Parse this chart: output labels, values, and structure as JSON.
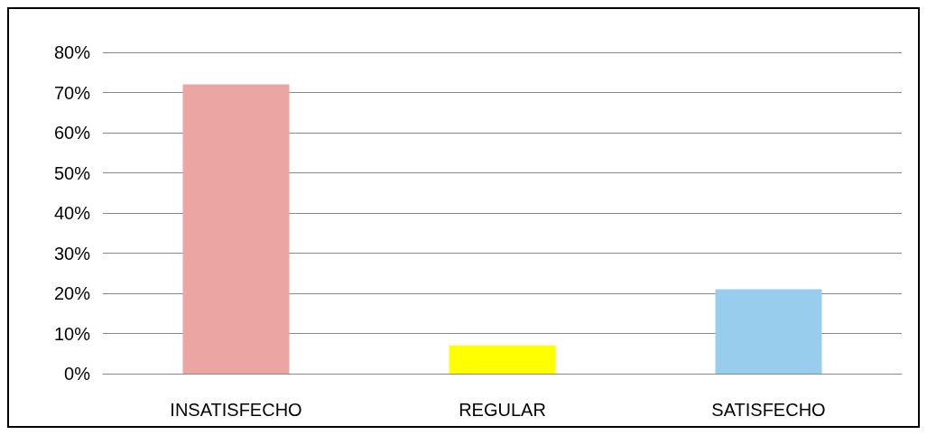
{
  "chart_data": {
    "type": "bar",
    "categories": [
      "INSATISFECHO",
      "REGULAR",
      "SATISFECHO"
    ],
    "values": [
      72,
      7,
      21
    ],
    "colors": [
      "#eba5a2",
      "#ffff00",
      "#99cdee"
    ],
    "ylim": [
      0,
      80
    ],
    "yticks": [
      {
        "value": 0,
        "label": "0%"
      },
      {
        "value": 10,
        "label": "10%"
      },
      {
        "value": 20,
        "label": "20%"
      },
      {
        "value": 30,
        "label": "30%"
      },
      {
        "value": 40,
        "label": "40%"
      },
      {
        "value": 50,
        "label": "50%"
      },
      {
        "value": 60,
        "label": "60%"
      },
      {
        "value": 70,
        "label": "70%"
      },
      {
        "value": 80,
        "label": "80%"
      }
    ],
    "grid": "y"
  }
}
